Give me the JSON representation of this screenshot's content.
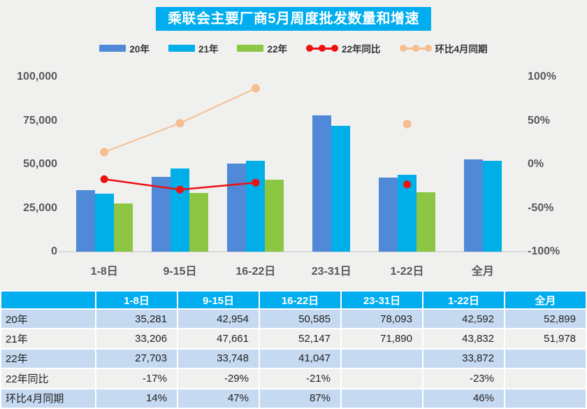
{
  "title": "乘联会主要厂商5月周度批发数量和增速",
  "legend": [
    {
      "label": "20年",
      "color": "#5089D8",
      "marker": "rect"
    },
    {
      "label": "21年",
      "color": "#00AEE8",
      "marker": "rect"
    },
    {
      "label": "22年",
      "color": "#8DC643",
      "marker": "rect"
    },
    {
      "label": "22年同比",
      "color": "#EE1111",
      "marker": "line-dots"
    },
    {
      "label": "环比4月同期",
      "color": "#F6BE8E",
      "marker": "line-dots"
    }
  ],
  "chart_data": {
    "type": "bar+line",
    "title": "乘联会主要厂商5月周度批发数量和增速",
    "categories": [
      "1-8日",
      "9-15日",
      "16-22日",
      "23-31日",
      "1-22日",
      "全月"
    ],
    "bar_series": [
      {
        "name": "20年",
        "color": "#5089D8",
        "values": [
          35281,
          42954,
          50585,
          78093,
          42592,
          52899
        ]
      },
      {
        "name": "21年",
        "color": "#00AEE8",
        "values": [
          33206,
          47661,
          52147,
          71890,
          43832,
          51978
        ]
      },
      {
        "name": "22年",
        "color": "#8DC643",
        "values": [
          27703,
          33748,
          41047,
          null,
          33872,
          null
        ]
      }
    ],
    "line_series": [
      {
        "name": "22年同比",
        "color": "#EE1111",
        "stroke_width": 2.5,
        "dot_radius": 5.5,
        "values_pct": [
          -17,
          -29,
          -21,
          null,
          -23,
          null
        ]
      },
      {
        "name": "环比4月同期",
        "color": "#F6BE8E",
        "stroke_width": 2,
        "dot_radius": 6,
        "values_pct": [
          14,
          47,
          87,
          null,
          46,
          null
        ]
      }
    ],
    "left_axis": {
      "label": "",
      "ticks": [
        "100,000",
        "75,000",
        "50,000",
        "25,000",
        "0"
      ],
      "min": 0,
      "max": 100000,
      "grid": false
    },
    "right_axis": {
      "label": "",
      "ticks": [
        "100%",
        "50%",
        "0%",
        "-50%",
        "-100%"
      ],
      "min": -100,
      "max": 100
    },
    "legend_position": "top"
  },
  "table": {
    "header": [
      "",
      "1-8日",
      "9-15日",
      "16-22日",
      "23-31日",
      "1-22日",
      "全月"
    ],
    "rows": [
      {
        "label": "20年",
        "cells": [
          "35,281",
          "42,954",
          "50,585",
          "78,093",
          "42,592",
          "52,899"
        ],
        "striped": true
      },
      {
        "label": "21年",
        "cells": [
          "33,206",
          "47,661",
          "52,147",
          "71,890",
          "43,832",
          "51,978"
        ],
        "striped": false
      },
      {
        "label": "22年",
        "cells": [
          "27,703",
          "33,748",
          "41,047",
          "",
          "33,872",
          ""
        ],
        "striped": true
      },
      {
        "label": "22年同比",
        "cells": [
          "-17%",
          "-29%",
          "-21%",
          "",
          "-23%",
          ""
        ],
        "striped": false
      },
      {
        "label": "环比4月同期",
        "cells": [
          "14%",
          "47%",
          "87%",
          "",
          "46%",
          ""
        ],
        "striped": true
      }
    ]
  },
  "colors": {
    "accent_blue": "#00AEEF",
    "bar_20": "#5089D8",
    "bar_21": "#00AEE8",
    "bar_22": "#8DC643",
    "line_yoy": "#EE1111",
    "line_mom": "#F6BE8E",
    "stripe": "#C5D9F1",
    "page_bg": "#F0F0EF",
    "axis_text": "#595959"
  }
}
